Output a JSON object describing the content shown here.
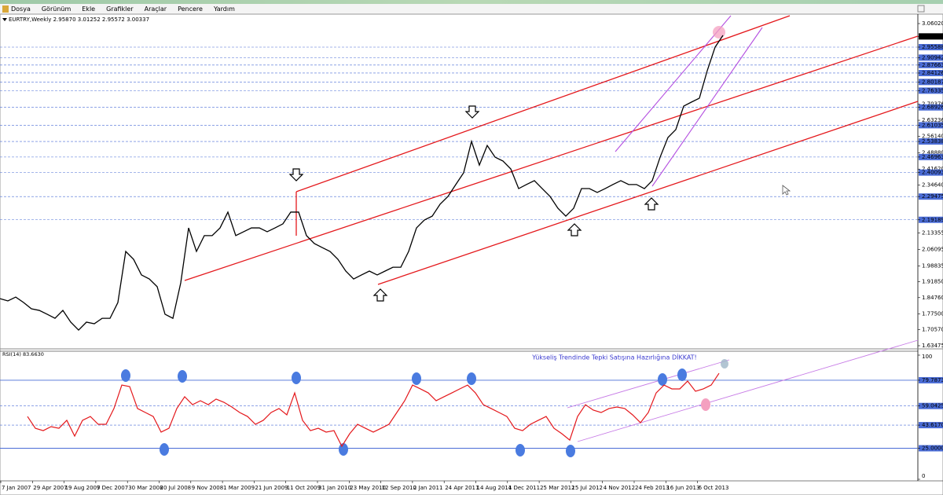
{
  "window": {
    "menu": [
      "Dosya",
      "Görünüm",
      "Ekle",
      "Grafikler",
      "Araçlar",
      "Pencere",
      "Yardım"
    ]
  },
  "chart": {
    "header": "EURTRY,Weekly  2.95870 3.01252 2.95572 3.00337",
    "ylim": [
      1.63475,
      3.0602
    ],
    "ticks": [
      {
        "value": 3.0602,
        "label": "3.06020"
      },
      {
        "value": 3.00337,
        "label": "3.00337",
        "kind": "current"
      },
      {
        "value": 2.95588,
        "label": "2.95588",
        "kind": "level"
      },
      {
        "value": 2.90942,
        "label": "2.90942",
        "kind": "level"
      },
      {
        "value": 2.87663,
        "label": "2.87663",
        "kind": "level"
      },
      {
        "value": 2.84126,
        "label": "2.84126",
        "kind": "level"
      },
      {
        "value": 2.80187,
        "label": "2.80187",
        "kind": "level"
      },
      {
        "value": 2.76335,
        "label": "2.76335",
        "kind": "level"
      },
      {
        "value": 2.70376,
        "label": "2.70376"
      },
      {
        "value": 2.68926,
        "label": "2.68926",
        "kind": "level"
      },
      {
        "value": 2.63236,
        "label": "2.63236"
      },
      {
        "value": 2.61035,
        "label": "2.61035",
        "kind": "level"
      },
      {
        "value": 2.5614,
        "label": "2.56140"
      },
      {
        "value": 2.53838,
        "label": "2.53838",
        "kind": "level"
      },
      {
        "value": 2.4888,
        "label": "2.48880"
      },
      {
        "value": 2.46963,
        "label": "2.46963",
        "kind": "level"
      },
      {
        "value": 2.4162,
        "label": "2.41620"
      },
      {
        "value": 2.40093,
        "label": "2.40093",
        "kind": "level"
      },
      {
        "value": 2.3464,
        "label": "2.34640"
      },
      {
        "value": 2.29475,
        "label": "2.29475",
        "kind": "level"
      },
      {
        "value": 2.19189,
        "label": "2.19189",
        "kind": "level"
      },
      {
        "value": 2.13355,
        "label": "2.13355"
      },
      {
        "value": 2.06095,
        "label": "2.06095"
      },
      {
        "value": 1.98835,
        "label": "1.98835"
      },
      {
        "value": 1.9185,
        "label": "1.91850"
      },
      {
        "value": 1.8476,
        "label": "1.84760"
      },
      {
        "value": 1.775,
        "label": "1.77500"
      },
      {
        "value": 1.7057,
        "label": "1.70570"
      },
      {
        "value": 1.63475,
        "label": "1.63475"
      }
    ],
    "close": [
      1.843,
      1.833,
      1.85,
      1.826,
      1.798,
      1.791,
      1.774,
      1.756,
      1.791,
      1.739,
      1.704,
      1.739,
      1.732,
      1.756,
      1.756,
      1.826,
      2.052,
      2.017,
      1.948,
      1.93,
      1.896,
      1.774,
      1.756,
      1.913,
      2.156,
      2.052,
      2.122,
      2.122,
      2.156,
      2.226,
      2.122,
      2.139,
      2.156,
      2.156,
      2.139,
      2.156,
      2.174,
      2.226,
      2.226,
      2.122,
      2.087,
      2.069,
      2.052,
      2.017,
      1.965,
      1.93,
      1.948,
      1.965,
      1.948,
      1.965,
      1.982,
      1.982,
      2.052,
      2.156,
      2.191,
      2.208,
      2.261,
      2.295,
      2.348,
      2.4,
      2.539,
      2.434,
      2.521,
      2.469,
      2.452,
      2.417,
      2.33,
      2.348,
      2.365,
      2.33,
      2.295,
      2.243,
      2.208,
      2.243,
      2.33,
      2.33,
      2.313,
      2.33,
      2.348,
      2.365,
      2.348,
      2.348,
      2.33,
      2.365,
      2.469,
      2.556,
      2.591,
      2.695,
      2.713,
      2.73,
      2.852,
      2.956,
      3.008
    ]
  },
  "rsi": {
    "header": "RSI(14) 83.6630",
    "annotation": "Yükseliş Trendinde Tepki Satışına Hazırlığına DİKKAT!",
    "ylim": [
      0,
      100
    ],
    "ticks": [
      100,
      79.7873,
      {
        "value": 59.0425,
        "label": "59.0425"
      },
      {
        "value": 43.617,
        "label": "43.6170"
      },
      {
        "value": 25,
        "label": "25.0000"
      },
      0
    ],
    "values": [
      50.6,
      41.1,
      39.2,
      42.4,
      41.1,
      47.5,
      34.8,
      47.5,
      50.6,
      44.3,
      44.3,
      57.0,
      75.9,
      74.7,
      57.0,
      53.8,
      50.6,
      38.0,
      41.1,
      57.0,
      66.5,
      60.1,
      63.3,
      60.1,
      64.6,
      62.0,
      58.2,
      53.8,
      50.6,
      44.3,
      47.5,
      53.8,
      57.0,
      51.9,
      69.6,
      47.5,
      39.2,
      41.1,
      38.0,
      39.2,
      26.6,
      36.7,
      44.3,
      41.1,
      38.0,
      41.1,
      44.3,
      53.8,
      63.3,
      75.9,
      72.8,
      69.6,
      63.3,
      66.5,
      69.6,
      72.8,
      75.9,
      69.6,
      60.1,
      57.0,
      53.8,
      50.6,
      41.1,
      39.2,
      44.3,
      47.5,
      50.6,
      41.1,
      36.7,
      31.6,
      50.6,
      60.1,
      55.7,
      53.8,
      57.0,
      58.2,
      57.0,
      51.9,
      45.6,
      53.8,
      69.6,
      75.9,
      72.8,
      72.8,
      79.1,
      70.9,
      72.8,
      75.9,
      85.4
    ]
  },
  "dates": [
    "7 Jan 2007",
    "29 Apr 2007",
    "19 Aug 2007",
    "9 Dec 2007",
    "30 Mar 2008",
    "20 Jul 2008",
    "9 Nov 2008",
    "1 Mar 2009",
    "21 Jun 2009",
    "11 Oct 2009",
    "31 Jan 2010",
    "23 May 2010",
    "12 Sep 2010",
    "2 Jan 2011",
    "24 Apr 2011",
    "14 Aug 2011",
    "4 Dec 2011",
    "25 Mar 2012",
    "15 Jul 2012",
    "4 Nov 2012",
    "24 Feb 2013",
    "16 Jun 2013",
    "6 Oct 2013"
  ]
}
